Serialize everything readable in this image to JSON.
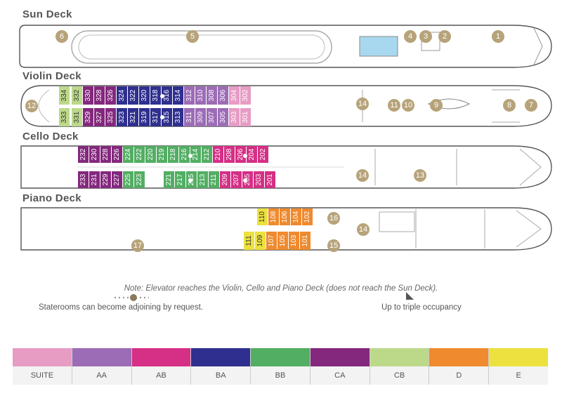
{
  "decks": {
    "sun": "Sun Deck",
    "violin": "Violin Deck",
    "cello": "Cello Deck",
    "piano": "Piano Deck"
  },
  "category_colors": {
    "SUITE": "#e79cc4",
    "AA": "#9c6cb6",
    "AB": "#d52f86",
    "BA": "#2e2f8e",
    "BB": "#52ae63",
    "CA": "#84287e",
    "CB": "#bcd98a",
    "D": "#ef8a2e",
    "E": "#ece13e"
  },
  "markers": {
    "sun": [
      "6",
      "5",
      "4",
      "3",
      "2",
      "1"
    ],
    "violin": [
      "12",
      "14",
      "11",
      "10",
      "9",
      "8",
      "7"
    ],
    "cello": [
      "14",
      "13"
    ],
    "piano": [
      "16",
      "14",
      "15",
      "17"
    ]
  },
  "cabins": {
    "violin_top": [
      {
        "n": "334",
        "c": "CB"
      },
      {
        "n": "332",
        "c": "CB"
      },
      {
        "n": "330",
        "c": "CA"
      },
      {
        "n": "328",
        "c": "CA"
      },
      {
        "n": "326",
        "c": "CA"
      },
      {
        "n": "324",
        "c": "BA"
      },
      {
        "n": "322",
        "c": "BA"
      },
      {
        "n": "320",
        "c": "BA"
      },
      {
        "n": "318",
        "c": "BA"
      },
      {
        "n": "316",
        "c": "BA"
      },
      {
        "n": "314",
        "c": "BA"
      },
      {
        "n": "312",
        "c": "AA"
      },
      {
        "n": "310",
        "c": "AA"
      },
      {
        "n": "308",
        "c": "AA"
      },
      {
        "n": "306",
        "c": "AA"
      },
      {
        "n": "304",
        "c": "SUITE"
      },
      {
        "n": "302",
        "c": "SUITE"
      }
    ],
    "violin_bottom": [
      {
        "n": "333",
        "c": "CB"
      },
      {
        "n": "331",
        "c": "CB"
      },
      {
        "n": "329",
        "c": "CA"
      },
      {
        "n": "327",
        "c": "CA"
      },
      {
        "n": "325",
        "c": "CA"
      },
      {
        "n": "323",
        "c": "BA"
      },
      {
        "n": "321",
        "c": "BA"
      },
      {
        "n": "319",
        "c": "BA"
      },
      {
        "n": "317",
        "c": "BA"
      },
      {
        "n": "315",
        "c": "BA"
      },
      {
        "n": "313",
        "c": "BA"
      },
      {
        "n": "311",
        "c": "AA"
      },
      {
        "n": "309",
        "c": "AA"
      },
      {
        "n": "307",
        "c": "AA"
      },
      {
        "n": "305",
        "c": "AA"
      },
      {
        "n": "303",
        "c": "SUITE"
      },
      {
        "n": "301",
        "c": "SUITE"
      }
    ],
    "cello_top": [
      {
        "n": "232",
        "c": "CA"
      },
      {
        "n": "230",
        "c": "CA"
      },
      {
        "n": "228",
        "c": "CA"
      },
      {
        "n": "226",
        "c": "CA"
      },
      {
        "n": "224",
        "c": "BB"
      },
      {
        "n": "222",
        "c": "BB"
      },
      {
        "n": "220",
        "c": "BB"
      },
      {
        "n": "219",
        "c": "BB"
      },
      {
        "n": "218",
        "c": "BB"
      },
      {
        "n": "216",
        "c": "BB"
      },
      {
        "n": "214",
        "c": "BB"
      },
      {
        "n": "212",
        "c": "BB"
      },
      {
        "n": "210",
        "c": "AB"
      },
      {
        "n": "208",
        "c": "AB"
      },
      {
        "n": "206",
        "c": "AB"
      },
      {
        "n": "204",
        "c": "AB"
      },
      {
        "n": "202",
        "c": "AB"
      }
    ],
    "cello_bottom": [
      {
        "n": "233",
        "c": "CA"
      },
      {
        "n": "231",
        "c": "CA"
      },
      {
        "n": "229",
        "c": "CA"
      },
      {
        "n": "227",
        "c": "CA"
      },
      {
        "n": "225",
        "c": "BB"
      },
      {
        "n": "223",
        "c": "BB"
      },
      {
        "n": "221",
        "c": "BB"
      },
      {
        "n": "217",
        "c": "BB"
      },
      {
        "n": "215",
        "c": "BB"
      },
      {
        "n": "213",
        "c": "BB"
      },
      {
        "n": "211",
        "c": "BB"
      },
      {
        "n": "209",
        "c": "AB"
      },
      {
        "n": "207",
        "c": "AB"
      },
      {
        "n": "205",
        "c": "AB"
      },
      {
        "n": "203",
        "c": "AB"
      },
      {
        "n": "201",
        "c": "AB"
      }
    ],
    "piano_top": [
      {
        "n": "110",
        "c": "E"
      },
      {
        "n": "108",
        "c": "D"
      },
      {
        "n": "106",
        "c": "D"
      },
      {
        "n": "104",
        "c": "D"
      },
      {
        "n": "102",
        "c": "D"
      }
    ],
    "piano_bottom": [
      {
        "n": "111",
        "c": "E"
      },
      {
        "n": "109",
        "c": "E"
      },
      {
        "n": "107",
        "c": "D"
      },
      {
        "n": "105",
        "c": "D"
      },
      {
        "n": "103",
        "c": "D"
      },
      {
        "n": "101",
        "c": "D"
      }
    ]
  },
  "note": "Note: Elevator reaches the Violin, Cello and Piano Deck (does not reach the Sun Deck).",
  "adjoining_label": "Staterooms can become adjoining by request.",
  "triple_label": "Up to triple occupancy",
  "legend": [
    "SUITE",
    "AA",
    "AB",
    "BA",
    "BB",
    "CA",
    "CB",
    "D",
    "E"
  ]
}
